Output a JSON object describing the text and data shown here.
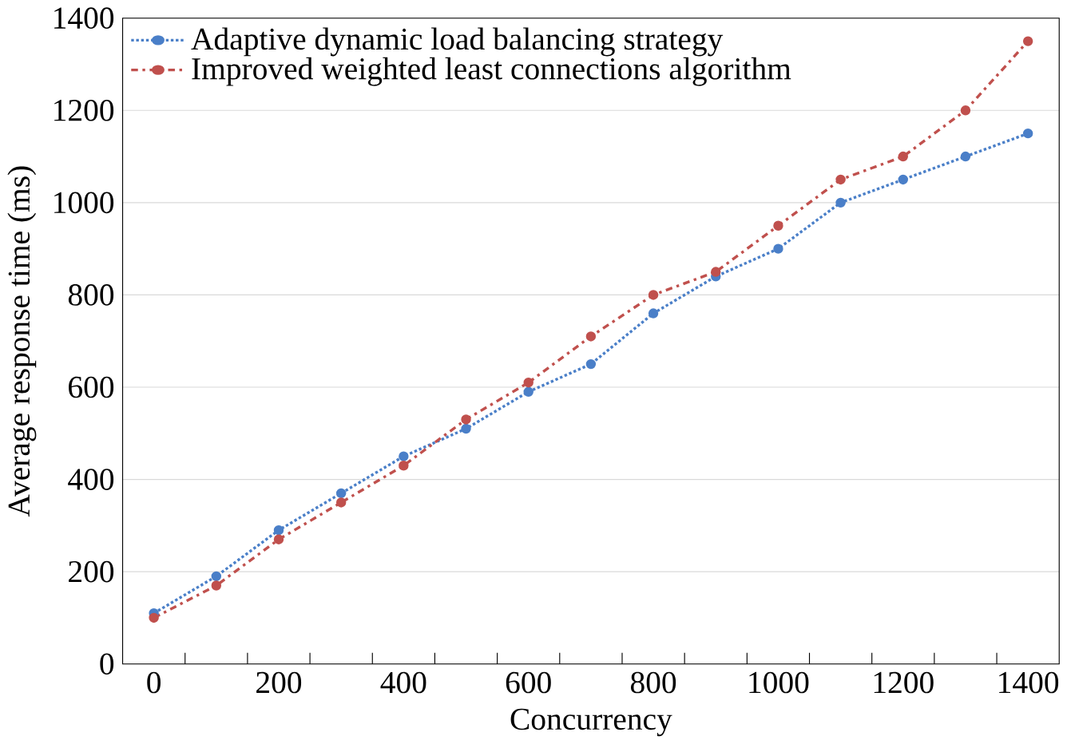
{
  "chart_data": {
    "type": "line",
    "xlabel": "Concurrency",
    "ylabel": "Average response time (ms)",
    "categories": [
      "0",
      null,
      "200",
      null,
      "400",
      null,
      "600",
      null,
      "800",
      null,
      "1000",
      null,
      "1200",
      null,
      "1400"
    ],
    "ylim": [
      0,
      1400
    ],
    "yticks": [
      0,
      200,
      400,
      600,
      800,
      1000,
      1200,
      1400
    ],
    "grid": "y",
    "legend": "top left",
    "marker": "circle",
    "series": [
      {
        "name": "Adaptive dynamic load balancing strategy",
        "color": "#4a7fc8",
        "line_style": "dotted",
        "values": [
          110,
          190,
          290,
          370,
          450,
          510,
          590,
          650,
          760,
          840,
          900,
          1000,
          1050,
          1100,
          1150
        ]
      },
      {
        "name": "Improved weighted least connections algorithm",
        "color": "#c0504d",
        "line_style": "dashdot",
        "values": [
          100,
          170,
          270,
          350,
          430,
          530,
          610,
          710,
          800,
          850,
          950,
          1050,
          1100,
          1200,
          1350
        ]
      }
    ]
  }
}
